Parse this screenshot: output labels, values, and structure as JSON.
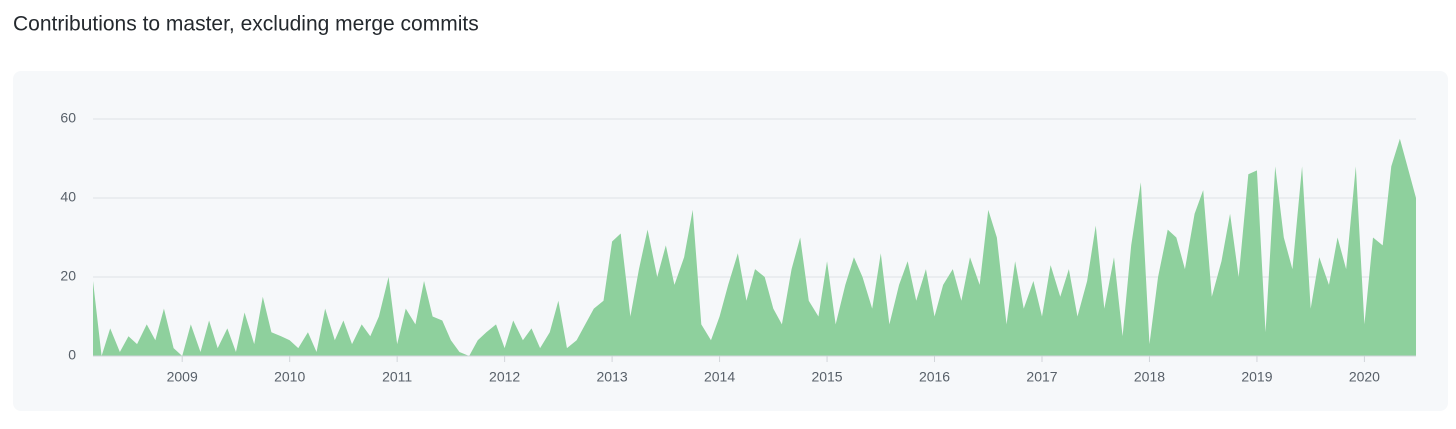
{
  "chart_data": {
    "type": "area",
    "title": "Contributions to master, excluding merge commits",
    "color": "#8ed09d",
    "grid": true,
    "xlim": [
      2008.17,
      2020.48
    ],
    "ylim": [
      0,
      60
    ],
    "xticks": [
      2009,
      2010,
      2011,
      2012,
      2013,
      2014,
      2015,
      2016,
      2017,
      2018,
      2019,
      2020
    ],
    "yticks": [
      0,
      20,
      40,
      60
    ],
    "x": [
      2008.17,
      2008.25,
      2008.33,
      2008.42,
      2008.5,
      2008.58,
      2008.67,
      2008.75,
      2008.83,
      2008.92,
      2009.0,
      2009.08,
      2009.17,
      2009.25,
      2009.33,
      2009.42,
      2009.5,
      2009.58,
      2009.67,
      2009.75,
      2009.83,
      2009.92,
      2010.0,
      2010.08,
      2010.17,
      2010.25,
      2010.33,
      2010.42,
      2010.5,
      2010.58,
      2010.67,
      2010.75,
      2010.83,
      2010.92,
      2011.0,
      2011.08,
      2011.17,
      2011.25,
      2011.33,
      2011.42,
      2011.5,
      2011.58,
      2011.67,
      2011.75,
      2011.83,
      2011.92,
      2012.0,
      2012.08,
      2012.17,
      2012.25,
      2012.33,
      2012.42,
      2012.5,
      2012.58,
      2012.67,
      2012.75,
      2012.83,
      2012.92,
      2013.0,
      2013.08,
      2013.17,
      2013.25,
      2013.33,
      2013.42,
      2013.5,
      2013.58,
      2013.67,
      2013.75,
      2013.83,
      2013.92,
      2014.0,
      2014.08,
      2014.17,
      2014.25,
      2014.33,
      2014.42,
      2014.5,
      2014.58,
      2014.67,
      2014.75,
      2014.83,
      2014.92,
      2015.0,
      2015.08,
      2015.17,
      2015.25,
      2015.33,
      2015.42,
      2015.5,
      2015.58,
      2015.67,
      2015.75,
      2015.83,
      2015.92,
      2016.0,
      2016.08,
      2016.17,
      2016.25,
      2016.33,
      2016.42,
      2016.5,
      2016.58,
      2016.67,
      2016.75,
      2016.83,
      2016.92,
      2017.0,
      2017.08,
      2017.17,
      2017.25,
      2017.33,
      2017.42,
      2017.5,
      2017.58,
      2017.67,
      2017.75,
      2017.83,
      2017.92,
      2018.0,
      2018.08,
      2018.17,
      2018.25,
      2018.33,
      2018.42,
      2018.5,
      2018.58,
      2018.67,
      2018.75,
      2018.83,
      2018.92,
      2019.0,
      2019.08,
      2019.17,
      2019.25,
      2019.33,
      2019.42,
      2019.5,
      2019.58,
      2019.67,
      2019.75,
      2019.83,
      2019.92,
      2020.0,
      2020.08,
      2020.17,
      2020.25,
      2020.33,
      2020.42,
      2020.48
    ],
    "values": [
      19,
      0,
      7,
      1,
      5,
      3,
      8,
      4,
      12,
      2,
      0,
      8,
      1,
      9,
      2,
      7,
      1,
      11,
      3,
      15,
      6,
      5,
      4,
      2,
      6,
      1,
      12,
      4,
      9,
      3,
      8,
      5,
      10,
      20,
      3,
      12,
      8,
      19,
      10,
      9,
      4,
      1,
      0,
      4,
      6,
      8,
      2,
      9,
      4,
      7,
      2,
      6,
      14,
      2,
      4,
      8,
      12,
      14,
      29,
      31,
      10,
      22,
      32,
      20,
      28,
      18,
      25,
      37,
      8,
      4,
      10,
      18,
      26,
      14,
      22,
      20,
      12,
      8,
      22,
      30,
      14,
      10,
      24,
      8,
      18,
      25,
      20,
      12,
      26,
      8,
      18,
      24,
      14,
      22,
      10,
      18,
      22,
      14,
      25,
      18,
      37,
      30,
      8,
      24,
      12,
      19,
      10,
      23,
      15,
      22,
      10,
      19,
      33,
      12,
      25,
      5,
      28,
      44,
      3,
      20,
      32,
      30,
      22,
      36,
      42,
      15,
      24,
      36,
      20,
      46,
      47,
      6,
      48,
      30,
      22,
      48,
      12,
      25,
      18,
      30,
      22,
      48,
      8,
      30,
      28,
      48,
      55,
      46,
      40
    ]
  }
}
